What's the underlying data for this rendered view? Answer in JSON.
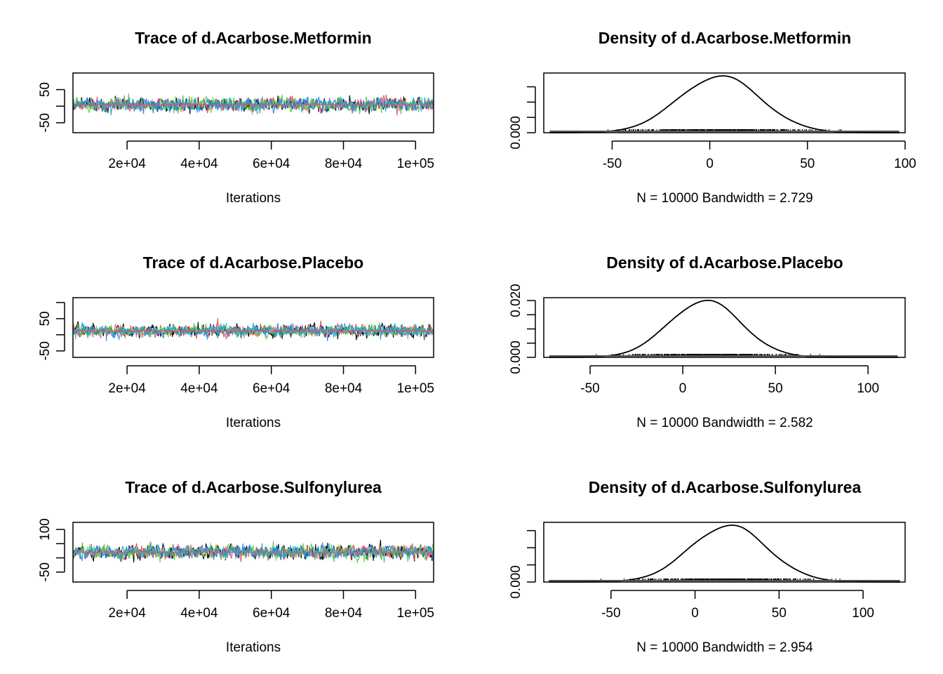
{
  "chart_data": [
    {
      "type": "line",
      "title": "Trace of d.Acarbose.Metformin",
      "xlabel": "Iterations",
      "ylabel": "",
      "xlim": [
        5000,
        105000
      ],
      "ylim": [
        -80,
        100
      ],
      "xticks": [
        20000,
        40000,
        60000,
        80000,
        100000
      ],
      "xtick_labels": [
        "2e+04",
        "4e+04",
        "6e+04",
        "8e+04",
        "1e+05"
      ],
      "yticks": [
        -50,
        0,
        50
      ],
      "ytick_labels": [
        "-50",
        "",
        "50"
      ],
      "center": 5,
      "spread": 15,
      "series": [
        {
          "color": "#000000",
          "values": []
        },
        {
          "color": "#df536b",
          "values": []
        },
        {
          "color": "#61d04f",
          "values": []
        },
        {
          "color": "#2297e6",
          "values": []
        }
      ]
    },
    {
      "type": "area",
      "title": "Density of d.Acarbose.Metformin",
      "xlabel": "N = 10000   Bandwidth = 2.729",
      "ylabel": "",
      "xlim": [
        -85,
        100
      ],
      "ylim": [
        0,
        0.0195
      ],
      "xticks": [
        -50,
        0,
        50,
        100
      ],
      "xtick_labels": [
        "-50",
        "0",
        "50",
        "100"
      ],
      "yticks": [
        0,
        0.005,
        0.01,
        0.015
      ],
      "ytick_labels": [
        "0.000",
        "",
        "",
        ""
      ],
      "range": [
        -82,
        97
      ],
      "mode": 5,
      "peak": 0.0185,
      "sd": 21
    },
    {
      "type": "line",
      "title": "Trace of d.Acarbose.Placebo",
      "xlabel": "Iterations",
      "ylabel": "",
      "xlim": [
        5000,
        105000
      ],
      "ylim": [
        -70,
        115
      ],
      "xticks": [
        20000,
        40000,
        60000,
        80000,
        100000
      ],
      "xtick_labels": [
        "2e+04",
        "4e+04",
        "6e+04",
        "8e+04",
        "1e+05"
      ],
      "yticks": [
        -50,
        0,
        50,
        100
      ],
      "ytick_labels": [
        "-50",
        "",
        "50",
        ""
      ],
      "center": 12,
      "spread": 14,
      "series": [
        {
          "color": "#000000",
          "values": []
        },
        {
          "color": "#df536b",
          "values": []
        },
        {
          "color": "#61d04f",
          "values": []
        },
        {
          "color": "#2297e6",
          "values": []
        }
      ]
    },
    {
      "type": "area",
      "title": "Density of d.Acarbose.Placebo",
      "xlabel": "N = 10000   Bandwidth = 2.582",
      "ylabel": "",
      "xlim": [
        -75,
        120
      ],
      "ylim": [
        0,
        0.021
      ],
      "xticks": [
        -50,
        0,
        50,
        100
      ],
      "xtick_labels": [
        "-50",
        "0",
        "50",
        "100"
      ],
      "yticks": [
        0,
        0.005,
        0.01,
        0.015,
        0.02
      ],
      "ytick_labels": [
        "0.000",
        "",
        "",
        "",
        "0.020"
      ],
      "range": [
        -72,
        116
      ],
      "mode": 12,
      "peak": 0.02,
      "sd": 19.5
    },
    {
      "type": "line",
      "title": "Trace of d.Acarbose.Sulfonylurea",
      "xlabel": "Iterations",
      "ylabel": "",
      "xlim": [
        5000,
        105000
      ],
      "ylim": [
        -85,
        125
      ],
      "xticks": [
        20000,
        40000,
        60000,
        80000,
        100000
      ],
      "xtick_labels": [
        "2e+04",
        "4e+04",
        "6e+04",
        "8e+04",
        "1e+05"
      ],
      "yticks": [
        -50,
        0,
        50,
        100
      ],
      "ytick_labels": [
        "-50",
        "",
        "",
        "100"
      ],
      "center": 20,
      "spread": 18,
      "series": [
        {
          "color": "#000000",
          "values": []
        },
        {
          "color": "#df536b",
          "values": []
        },
        {
          "color": "#61d04f",
          "values": []
        },
        {
          "color": "#2297e6",
          "values": []
        }
      ]
    },
    {
      "type": "area",
      "title": "Density of d.Acarbose.Sulfonylurea",
      "xlabel": "N = 10000   Bandwidth = 2.954",
      "ylabel": "",
      "xlim": [
        -90,
        125
      ],
      "ylim": [
        0,
        0.0174
      ],
      "xticks": [
        -50,
        0,
        50,
        100
      ],
      "xtick_labels": [
        "-50",
        "0",
        "50",
        "100"
      ],
      "yticks": [
        0,
        0.005,
        0.01,
        0.015
      ],
      "ytick_labels": [
        "0.000",
        "",
        "",
        ""
      ],
      "range": [
        -87,
        122
      ],
      "mode": 20,
      "peak": 0.0165,
      "sd": 23
    }
  ]
}
